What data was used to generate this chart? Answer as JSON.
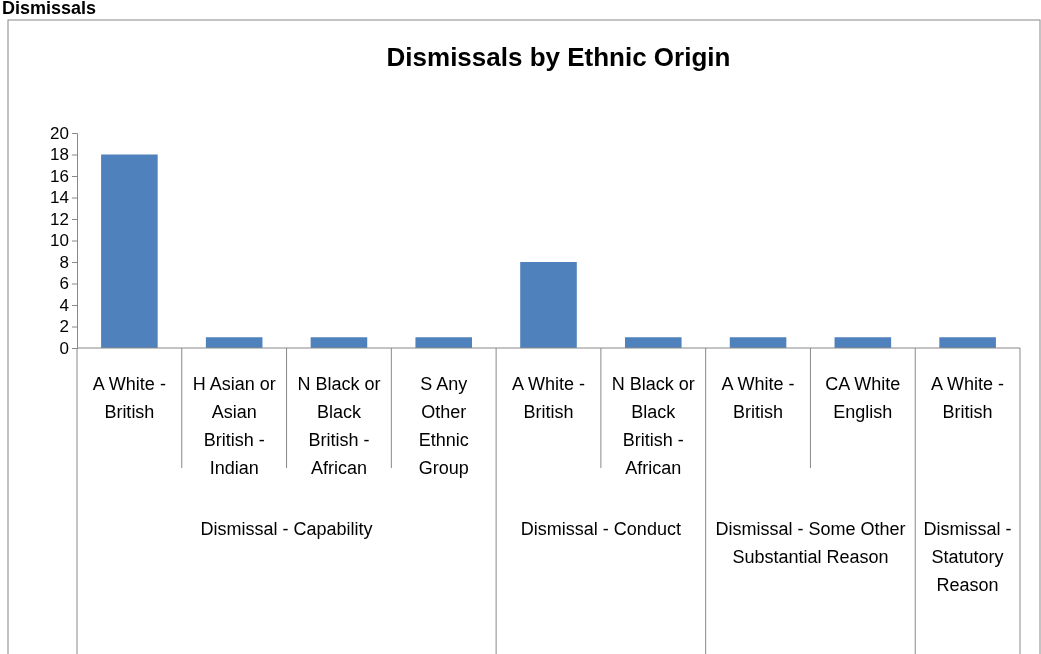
{
  "chart_data": {
    "type": "bar",
    "title": "Dismissals by Ethnic Origin",
    "categories": [
      "A White - British",
      "H Asian or Asian British - Indian",
      "N Black or Black British - African",
      "S Any Other Ethnic Group",
      "A White - British",
      "N Black or Black British - African",
      "A White - British",
      "CA White English",
      "A White - British"
    ],
    "values": [
      18,
      1,
      1,
      1,
      8,
      1,
      1,
      1,
      1
    ],
    "color": "#4f81bd",
    "ylim": [
      0,
      20
    ],
    "yticks": [
      0,
      2,
      4,
      6,
      8,
      10,
      12,
      14,
      16,
      18,
      20
    ],
    "grid": false,
    "annotations": [
      "Dismissals",
      "Dismissal - Capability",
      "Dismissal - Conduct",
      "Dismissal - Some Other Substantial Reason",
      "Dismissal - Statutory Reason"
    ]
  }
}
